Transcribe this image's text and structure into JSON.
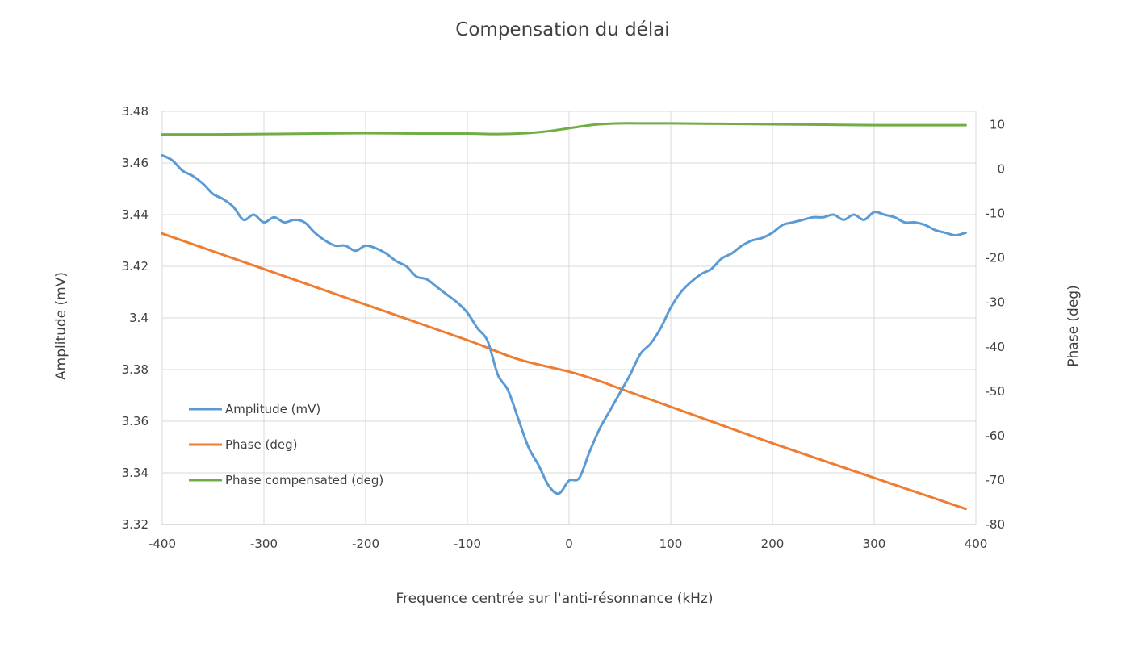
{
  "chart_data": {
    "type": "line",
    "title": "Compensation du délai",
    "xlabel": "Frequence centrée sur l'anti-résonnance (kHz)",
    "ylabel": "Amplitude (mV)",
    "y2label": "Phase (deg)",
    "xlim": [
      -400,
      400
    ],
    "ylim": [
      3.32,
      3.48
    ],
    "y2lim": [
      -80,
      13
    ],
    "xticks": [
      "-400",
      "-300",
      "-200",
      "-100",
      "0",
      "100",
      "200",
      "300",
      "400"
    ],
    "yticks": [
      "3.32",
      "3.34",
      "3.36",
      "3.38",
      "3.4",
      "3.42",
      "3.44",
      "3.46",
      "3.48"
    ],
    "y2ticks": [
      "-80",
      "-70",
      "-60",
      "-50",
      "-40",
      "-30",
      "-20",
      "-10",
      "0",
      "10"
    ],
    "grid": true,
    "legend_position": "bottom-left",
    "series": [
      {
        "name": "Amplitude (mV)",
        "axis": "left",
        "color": "#5b9bd5",
        "x": [
          -400,
          -390,
          -380,
          -370,
          -360,
          -350,
          -340,
          -330,
          -320,
          -310,
          -300,
          -290,
          -280,
          -270,
          -260,
          -250,
          -240,
          -230,
          -220,
          -210,
          -200,
          -190,
          -180,
          -170,
          -160,
          -150,
          -140,
          -130,
          -120,
          -110,
          -100,
          -90,
          -80,
          -70,
          -60,
          -50,
          -40,
          -30,
          -20,
          -10,
          0,
          10,
          20,
          30,
          40,
          50,
          60,
          70,
          80,
          90,
          100,
          110,
          120,
          130,
          140,
          150,
          160,
          170,
          180,
          190,
          200,
          210,
          220,
          230,
          240,
          250,
          260,
          270,
          280,
          290,
          300,
          310,
          320,
          330,
          340,
          350,
          360,
          370,
          380,
          390
        ],
        "y": [
          3.463,
          3.461,
          3.457,
          3.455,
          3.452,
          3.448,
          3.446,
          3.443,
          3.438,
          3.44,
          3.437,
          3.439,
          3.437,
          3.438,
          3.437,
          3.433,
          3.43,
          3.428,
          3.428,
          3.426,
          3.428,
          3.427,
          3.425,
          3.422,
          3.42,
          3.416,
          3.415,
          3.412,
          3.409,
          3.406,
          3.402,
          3.396,
          3.391,
          3.378,
          3.372,
          3.361,
          3.35,
          3.343,
          3.335,
          3.332,
          3.337,
          3.338,
          3.348,
          3.357,
          3.364,
          3.371,
          3.378,
          3.386,
          3.39,
          3.396,
          3.404,
          3.41,
          3.414,
          3.417,
          3.419,
          3.423,
          3.425,
          3.428,
          3.43,
          3.431,
          3.433,
          3.436,
          3.437,
          3.438,
          3.439,
          3.439,
          3.44,
          3.438,
          3.44,
          3.438,
          3.441,
          3.44,
          3.439,
          3.437,
          3.437,
          3.436,
          3.434,
          3.433,
          3.432,
          3.433
        ]
      },
      {
        "name": "Phase (deg)",
        "axis": "right",
        "color": "#ed7d31",
        "x": [
          -400,
          -300,
          -200,
          -100,
          -50,
          0,
          30,
          50,
          100,
          200,
          300,
          390
        ],
        "y": [
          -14.5,
          -22.5,
          -30.5,
          -38.5,
          -42.8,
          -45.6,
          -47.7,
          -49.4,
          -53.5,
          -61.7,
          -69.5,
          -76.5
        ]
      },
      {
        "name": "Phase compensated (deg)",
        "axis": "right",
        "color": "#70ad47",
        "x": [
          -400,
          -350,
          -300,
          -250,
          -200,
          -150,
          -100,
          -75,
          -50,
          -25,
          0,
          25,
          50,
          75,
          100,
          150,
          200,
          250,
          300,
          350,
          390
        ],
        "y": [
          7.8,
          7.8,
          7.9,
          8.0,
          8.1,
          8.0,
          8.0,
          7.9,
          8.0,
          8.4,
          9.2,
          10.0,
          10.3,
          10.3,
          10.3,
          10.2,
          10.1,
          10.0,
          9.9,
          9.9,
          9.9
        ]
      }
    ]
  }
}
